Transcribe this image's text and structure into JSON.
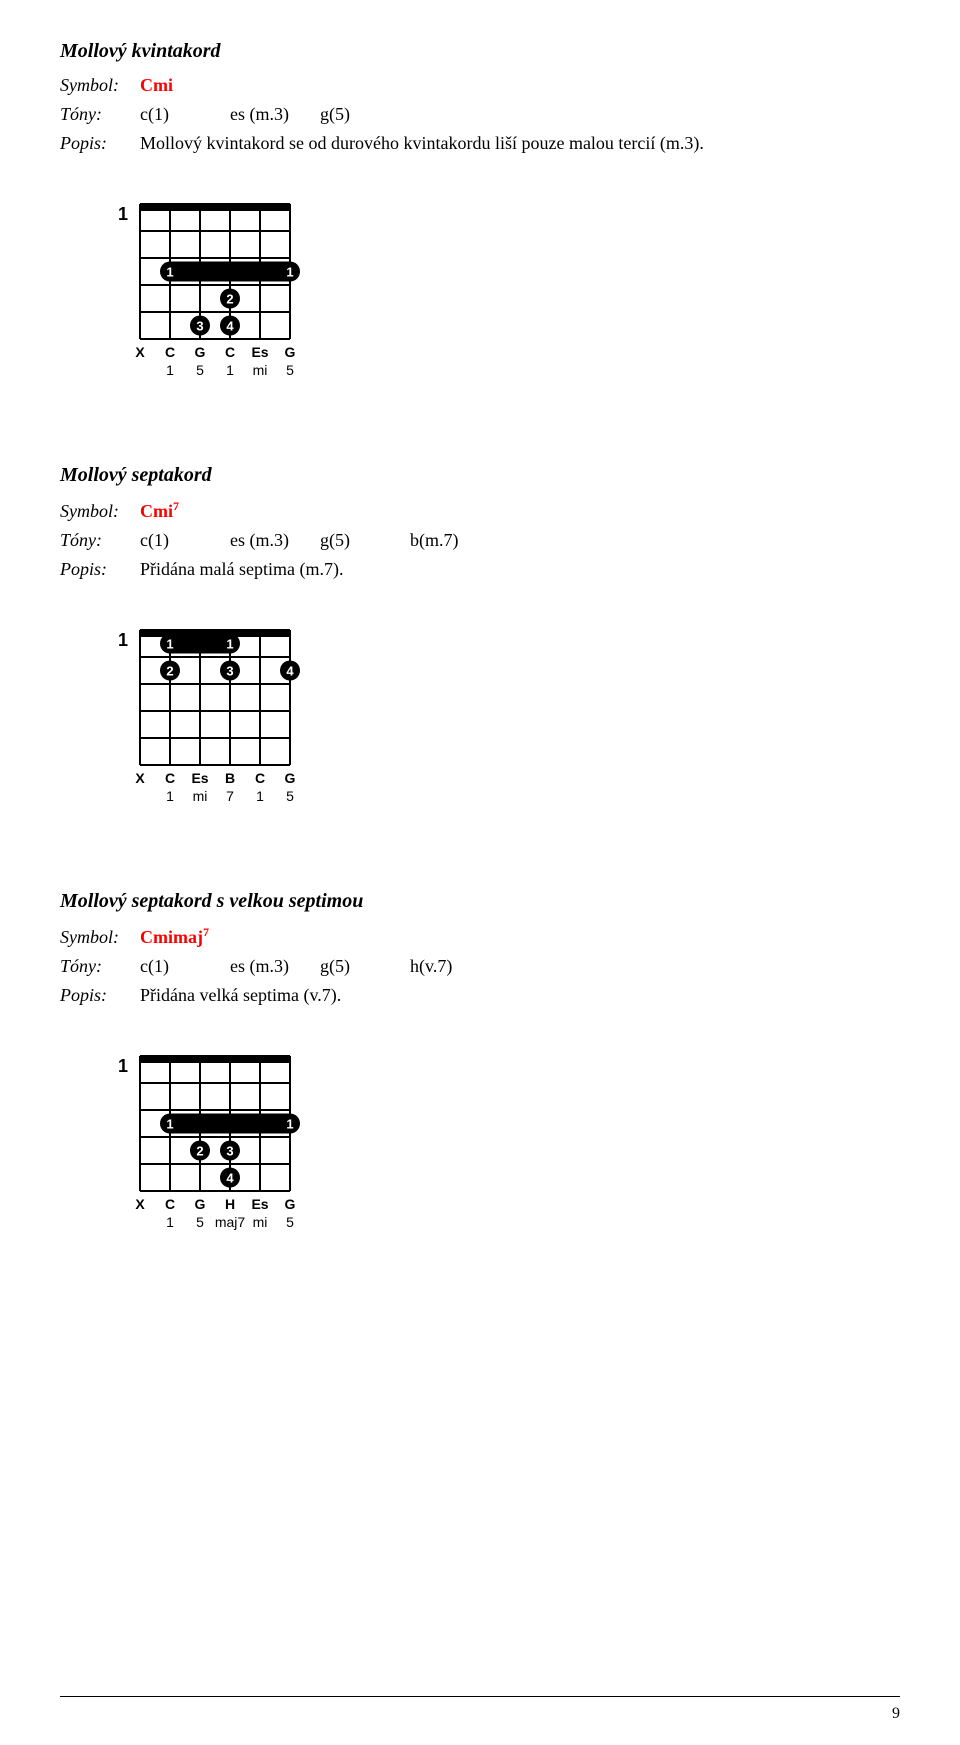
{
  "sections": [
    {
      "title": "Mollový kvintakord",
      "symbol_label": "Symbol:",
      "symbol": "Cmi",
      "symbol_sup": "",
      "tones_label": "Tóny:",
      "tones": [
        "c(1)",
        "es (m.3)",
        "g(5)",
        ""
      ],
      "desc_label": "Popis:",
      "desc": "Mollový kvintakord se od durového kvintakordu liší pouze malou tercií (m.3).",
      "diagram": {
        "start_fret": "1",
        "muted": [
          true,
          false,
          false,
          false,
          false,
          false
        ],
        "barre": {
          "fret": 3,
          "from": 1,
          "to": 5
        },
        "dots": [
          {
            "string": 3,
            "fret": 4,
            "finger": "2"
          },
          {
            "string": 2,
            "fret": 5,
            "finger": "3"
          },
          {
            "string": 3,
            "fret": 5,
            "finger": "4"
          }
        ],
        "notes": [
          "X",
          "C",
          "G",
          "C",
          "Es",
          "G"
        ],
        "degrees": [
          "",
          "1",
          "5",
          "1",
          "mi",
          "5"
        ]
      }
    },
    {
      "title": "Mollový septakord",
      "symbol_label": "Symbol:",
      "symbol": "Cmi",
      "symbol_sup": "7",
      "tones_label": "Tóny:",
      "tones": [
        "c(1)",
        "es (m.3)",
        "g(5)",
        "b(m.7)"
      ],
      "desc_label": "Popis:",
      "desc": "Přidána malá septima (m.7).",
      "diagram": {
        "start_fret": "1",
        "muted": [
          true,
          false,
          false,
          false,
          false,
          false
        ],
        "barre": {
          "fret": 1,
          "from": 1,
          "to": 3
        },
        "dots": [
          {
            "string": 1,
            "fret": 2,
            "finger": "2"
          },
          {
            "string": 3,
            "fret": 2,
            "finger": "3"
          },
          {
            "string": 5,
            "fret": 2,
            "finger": "4"
          }
        ],
        "notes": [
          "X",
          "C",
          "Es",
          "B",
          "C",
          "G"
        ],
        "degrees": [
          "",
          "1",
          "mi",
          "7",
          "1",
          "5"
        ]
      }
    },
    {
      "title": "Mollový septakord s velkou septimou",
      "symbol_label": "Symbol:",
      "symbol": "Cmimaj",
      "symbol_sup": "7",
      "tones_label": "Tóny:",
      "tones": [
        "c(1)",
        "es (m.3)",
        "g(5)",
        "h(v.7)"
      ],
      "desc_label": "Popis:",
      "desc": "Přidána velká septima (v.7).",
      "diagram": {
        "start_fret": "1",
        "muted": [
          true,
          false,
          false,
          false,
          false,
          false
        ],
        "barre": {
          "fret": 3,
          "from": 1,
          "to": 5
        },
        "dots": [
          {
            "string": 2,
            "fret": 4,
            "finger": "2"
          },
          {
            "string": 3,
            "fret": 4,
            "finger": "3"
          },
          {
            "string": 3,
            "fret": 5,
            "finger": "4"
          }
        ],
        "notes": [
          "X",
          "C",
          "G",
          "H",
          "Es",
          "G"
        ],
        "degrees": [
          "",
          "1",
          "5",
          "maj7",
          "mi",
          "5"
        ]
      }
    }
  ],
  "page_number": "9",
  "style": {
    "grid": {
      "width": 150,
      "height": 135,
      "cols": 5,
      "rows": 5,
      "stroke": "#000000",
      "stroke_width": 2
    },
    "nut_height": 7,
    "dot_radius": 10,
    "dot_fill": "#000000",
    "dot_text": "#ffffff",
    "font_family": "Arial, sans-serif",
    "fret_label_font": 14,
    "note_row_font": 14
  }
}
